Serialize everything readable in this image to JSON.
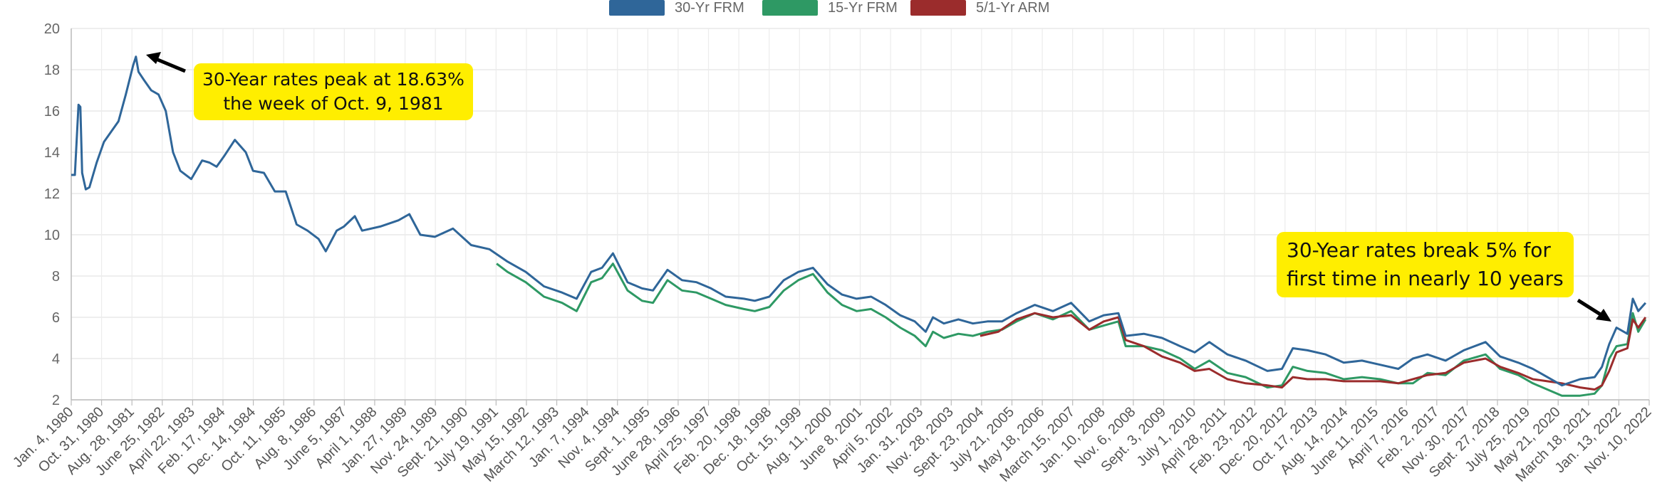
{
  "legend": {
    "items": [
      {
        "label": "30-Yr FRM",
        "color": "#2f6699"
      },
      {
        "label": "15-Yr FRM",
        "color": "#2e9964"
      },
      {
        "label": "5/1-Yr ARM",
        "color": "#9b2c2c"
      }
    ]
  },
  "annotations": {
    "peak": {
      "line1": "30-Year rates peak at 18.63%",
      "line2": "the week of Oct. 9, 1981"
    },
    "break": {
      "line1": "30-Year rates break 5% for",
      "line2": "first time in nearly 10 years"
    }
  },
  "chart_data": {
    "type": "line",
    "title": "",
    "xlabel": "",
    "ylabel": "",
    "ylim": [
      2,
      20
    ],
    "yticks": [
      2,
      4,
      6,
      8,
      10,
      12,
      14,
      16,
      18,
      20
    ],
    "xlim": [
      1980.0,
      2023.4
    ],
    "grid": true,
    "legend_position": "top",
    "x_tick_labels": [
      "Jan. 4, 1980",
      "Oct. 31, 1980",
      "Aug. 28, 1981",
      "June 25, 1982",
      "April 22, 1983",
      "Feb. 17, 1984",
      "Dec. 14, 1984",
      "Oct. 11, 1985",
      "Aug. 8, 1986",
      "June 5, 1987",
      "April 1, 1988",
      "Jan. 27, 1989",
      "Nov. 24, 1989",
      "Sept. 21, 1990",
      "July 19, 1991",
      "May 15, 1992",
      "March 12, 1993",
      "Jan. 7, 1994",
      "Nov. 4, 1994",
      "Sept. 1, 1995",
      "June 28, 1996",
      "April 25, 1997",
      "Feb. 20, 1998",
      "Dec. 18, 1998",
      "Oct. 15, 1999",
      "Aug. 11, 2000",
      "June 8, 2001",
      "April 5, 2002",
      "Jan. 31, 2003",
      "Nov. 28, 2003",
      "Sept. 23, 2004",
      "July 21, 2005",
      "May 18, 2006",
      "March 15, 2007",
      "Jan. 10, 2008",
      "Nov. 6, 2008",
      "Sept. 3, 2009",
      "July 1, 2010",
      "April 28, 2011",
      "Feb. 23, 2012",
      "Dec. 20, 2012",
      "Oct. 17, 2013",
      "Aug. 14, 2014",
      "June 11, 2015",
      "April 7, 2016",
      "Feb. 2, 2017",
      "Nov. 30, 2017",
      "Sept. 27, 2018",
      "July 25, 2019",
      "May 21, 2020",
      "March 18, 2021",
      "Jan. 13, 2022",
      "Nov. 10, 2022"
    ],
    "series": [
      {
        "name": "30-Yr FRM",
        "color": "#2f6699",
        "x": [
          1980.0,
          1980.1,
          1980.2,
          1980.25,
          1980.3,
          1980.4,
          1980.5,
          1980.7,
          1980.9,
          1981.1,
          1981.3,
          1981.5,
          1981.7,
          1981.78,
          1981.85,
          1982.0,
          1982.2,
          1982.4,
          1982.6,
          1982.8,
          1983.0,
          1983.3,
          1983.6,
          1983.8,
          1984.0,
          1984.2,
          1984.5,
          1984.8,
          1985.0,
          1985.3,
          1985.6,
          1985.9,
          1986.2,
          1986.5,
          1986.8,
          1987.0,
          1987.3,
          1987.5,
          1987.8,
          1988.0,
          1988.5,
          1989.0,
          1989.3,
          1989.6,
          1990.0,
          1990.5,
          1991.0,
          1991.5,
          1992.0,
          1992.5,
          1993.0,
          1993.5,
          1993.9,
          1994.3,
          1994.6,
          1994.9,
          1995.3,
          1995.7,
          1996.0,
          1996.4,
          1996.8,
          1997.2,
          1997.6,
          1998.0,
          1998.5,
          1998.8,
          1999.2,
          1999.6,
          2000.0,
          2000.4,
          2000.8,
          2001.2,
          2001.6,
          2002.0,
          2002.4,
          2002.8,
          2003.2,
          2003.5,
          2003.7,
          2004.0,
          2004.4,
          2004.8,
          2005.2,
          2005.6,
          2006.0,
          2006.5,
          2007.0,
          2007.5,
          2008.0,
          2008.4,
          2008.8,
          2009.0,
          2009.5,
          2010.0,
          2010.5,
          2010.9,
          2011.3,
          2011.8,
          2012.3,
          2012.9,
          2013.3,
          2013.6,
          2014.0,
          2014.5,
          2015.0,
          2015.5,
          2016.0,
          2016.5,
          2016.9,
          2017.3,
          2017.8,
          2018.3,
          2018.9,
          2019.3,
          2019.8,
          2020.2,
          2020.6,
          2021.0,
          2021.5,
          2021.9,
          2022.1,
          2022.3,
          2022.5,
          2022.8,
          2022.95,
          2023.1,
          2023.3
        ],
        "y": [
          12.9,
          12.9,
          16.3,
          16.2,
          13.0,
          12.2,
          12.3,
          13.5,
          14.5,
          15.0,
          15.5,
          16.8,
          18.2,
          18.63,
          17.9,
          17.5,
          17.0,
          16.8,
          16.0,
          14.0,
          13.1,
          12.7,
          13.6,
          13.5,
          13.3,
          13.8,
          14.6,
          14.0,
          13.1,
          13.0,
          12.1,
          12.1,
          10.5,
          10.2,
          9.8,
          9.2,
          10.2,
          10.4,
          10.9,
          10.2,
          10.4,
          10.7,
          11.0,
          10.0,
          9.9,
          10.3,
          9.5,
          9.3,
          8.7,
          8.2,
          7.5,
          7.2,
          6.9,
          8.2,
          8.4,
          9.1,
          7.7,
          7.4,
          7.3,
          8.3,
          7.8,
          7.7,
          7.4,
          7.0,
          6.9,
          6.8,
          7.0,
          7.8,
          8.2,
          8.4,
          7.6,
          7.1,
          6.9,
          7.0,
          6.6,
          6.1,
          5.8,
          5.3,
          6.0,
          5.7,
          5.9,
          5.7,
          5.8,
          5.8,
          6.2,
          6.6,
          6.3,
          6.7,
          5.8,
          6.1,
          6.2,
          5.1,
          5.2,
          5.0,
          4.6,
          4.3,
          4.8,
          4.2,
          3.9,
          3.4,
          3.5,
          4.5,
          4.4,
          4.2,
          3.8,
          3.9,
          3.7,
          3.5,
          4.0,
          4.2,
          3.9,
          4.4,
          4.8,
          4.1,
          3.8,
          3.5,
          3.1,
          2.7,
          3.0,
          3.1,
          3.6,
          4.7,
          5.5,
          5.2,
          6.9,
          6.3,
          6.7
        ]
      },
      {
        "name": "15-Yr FRM",
        "color": "#2e9964",
        "x": [
          1991.7,
          1992.0,
          1992.5,
          1993.0,
          1993.5,
          1993.9,
          1994.3,
          1994.6,
          1994.9,
          1995.3,
          1995.7,
          1996.0,
          1996.4,
          1996.8,
          1997.2,
          1997.6,
          1998.0,
          1998.5,
          1998.8,
          1999.2,
          1999.6,
          2000.0,
          2000.4,
          2000.8,
          2001.2,
          2001.6,
          2002.0,
          2002.4,
          2002.8,
          2003.2,
          2003.5,
          2003.7,
          2004.0,
          2004.4,
          2004.8,
          2005.2,
          2005.6,
          2006.0,
          2006.5,
          2007.0,
          2007.5,
          2008.0,
          2008.4,
          2008.8,
          2009.0,
          2009.5,
          2010.0,
          2010.5,
          2010.9,
          2011.3,
          2011.8,
          2012.3,
          2012.9,
          2013.3,
          2013.6,
          2014.0,
          2014.5,
          2015.0,
          2015.5,
          2016.0,
          2016.5,
          2016.9,
          2017.3,
          2017.8,
          2018.3,
          2018.9,
          2019.3,
          2019.8,
          2020.2,
          2020.6,
          2021.0,
          2021.5,
          2021.9,
          2022.1,
          2022.3,
          2022.5,
          2022.8,
          2022.95,
          2023.1,
          2023.3
        ],
        "y": [
          8.6,
          8.2,
          7.7,
          7.0,
          6.7,
          6.3,
          7.7,
          7.9,
          8.6,
          7.3,
          6.8,
          6.7,
          7.8,
          7.3,
          7.2,
          6.9,
          6.6,
          6.4,
          6.3,
          6.5,
          7.3,
          7.8,
          8.1,
          7.2,
          6.6,
          6.3,
          6.4,
          6.0,
          5.5,
          5.1,
          4.6,
          5.3,
          5.0,
          5.2,
          5.1,
          5.3,
          5.4,
          5.8,
          6.2,
          5.9,
          6.3,
          5.4,
          5.6,
          5.8,
          4.6,
          4.6,
          4.4,
          4.0,
          3.5,
          3.9,
          3.3,
          3.1,
          2.6,
          2.7,
          3.6,
          3.4,
          3.3,
          3.0,
          3.1,
          3.0,
          2.8,
          2.8,
          3.3,
          3.2,
          3.9,
          4.2,
          3.5,
          3.2,
          2.8,
          2.5,
          2.2,
          2.2,
          2.3,
          2.7,
          4.0,
          4.6,
          4.7,
          6.2,
          5.3,
          5.9
        ]
      },
      {
        "name": "5/1-Yr ARM",
        "color": "#9b2c2c",
        "x": [
          2005.0,
          2005.5,
          2006.0,
          2006.5,
          2007.0,
          2007.5,
          2008.0,
          2008.4,
          2008.8,
          2009.0,
          2009.5,
          2010.0,
          2010.5,
          2010.9,
          2011.3,
          2011.8,
          2012.3,
          2012.9,
          2013.3,
          2013.6,
          2014.0,
          2014.5,
          2015.0,
          2015.5,
          2016.0,
          2016.5,
          2016.9,
          2017.3,
          2017.8,
          2018.3,
          2018.9,
          2019.3,
          2019.8,
          2020.2,
          2020.6,
          2021.0,
          2021.5,
          2021.9,
          2022.1,
          2022.3,
          2022.5,
          2022.8,
          2022.95,
          2023.1,
          2023.3
        ],
        "y": [
          5.1,
          5.3,
          5.9,
          6.2,
          6.0,
          6.1,
          5.4,
          5.8,
          6.0,
          4.9,
          4.6,
          4.1,
          3.8,
          3.4,
          3.5,
          3.0,
          2.8,
          2.7,
          2.6,
          3.1,
          3.0,
          3.0,
          2.9,
          2.9,
          2.9,
          2.8,
          3.0,
          3.2,
          3.3,
          3.8,
          4.0,
          3.6,
          3.3,
          3.0,
          2.9,
          2.8,
          2.6,
          2.5,
          2.7,
          3.4,
          4.3,
          4.5,
          5.9,
          5.5,
          6.0
        ]
      }
    ]
  }
}
